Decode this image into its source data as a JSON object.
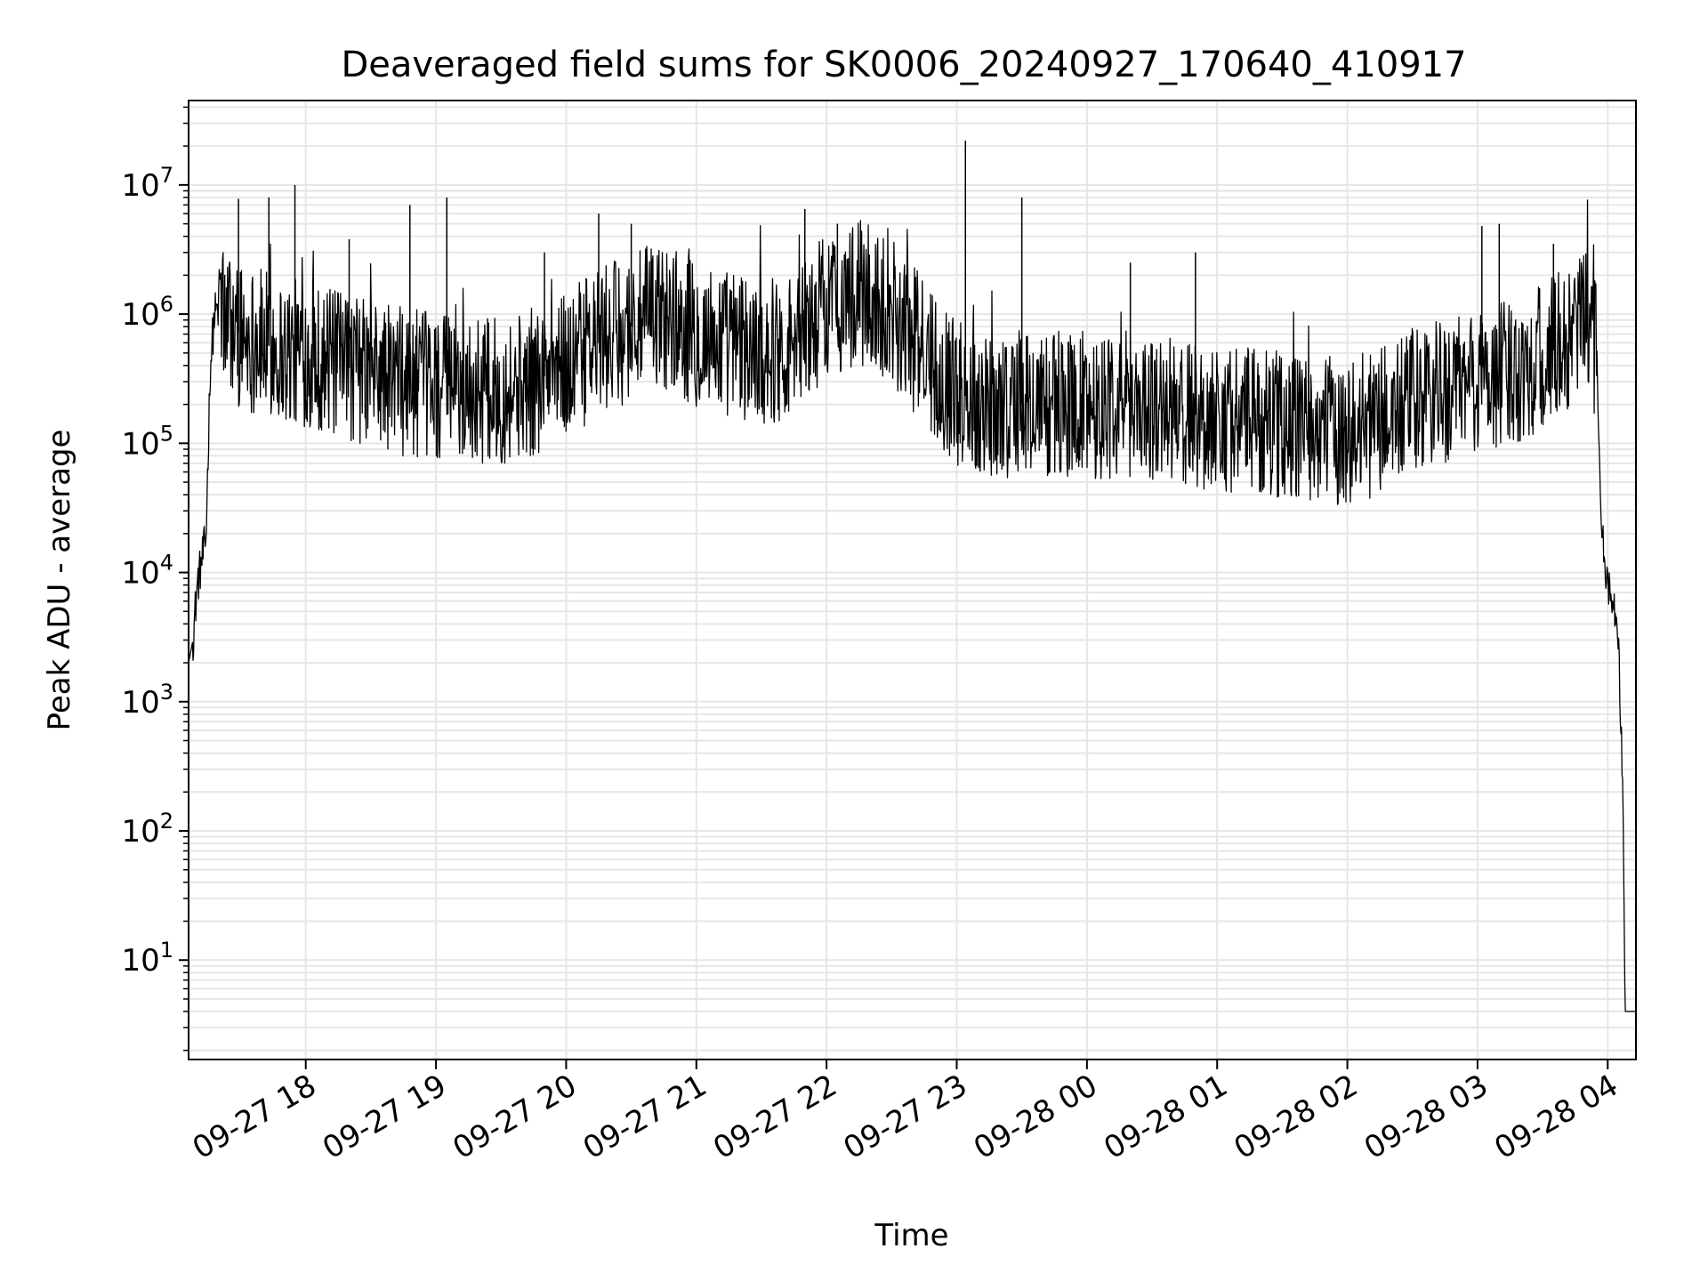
{
  "chart_data": {
    "type": "line",
    "title": "Deaveraged field sums for SK0006_20240927_170640_410917",
    "xlabel": "Time",
    "ylabel": "Peak ADU - average",
    "y_scale": "log",
    "ylim": [
      1.7,
      45000000
    ],
    "xlim": [
      "2024-09-27 17:06",
      "2024-09-28 04:13"
    ],
    "grid": true,
    "line_color": "#000000",
    "grid_color": "#e6e6e6",
    "x_ticks": [
      {
        "value": "2024-09-27 18:00",
        "label": "09-27 18"
      },
      {
        "value": "2024-09-27 19:00",
        "label": "09-27 19"
      },
      {
        "value": "2024-09-27 20:00",
        "label": "09-27 20"
      },
      {
        "value": "2024-09-27 21:00",
        "label": "09-27 21"
      },
      {
        "value": "2024-09-27 22:00",
        "label": "09-27 22"
      },
      {
        "value": "2024-09-27 23:00",
        "label": "09-27 23"
      },
      {
        "value": "2024-09-28 00:00",
        "label": "09-28 00"
      },
      {
        "value": "2024-09-28 01:00",
        "label": "09-28 01"
      },
      {
        "value": "2024-09-28 02:00",
        "label": "09-28 02"
      },
      {
        "value": "2024-09-28 03:00",
        "label": "09-28 03"
      },
      {
        "value": "2024-09-28 04:00",
        "label": "09-28 04"
      }
    ],
    "y_ticks": [
      {
        "value": 10,
        "base": "10",
        "exp": "1"
      },
      {
        "value": 100,
        "base": "10",
        "exp": "2"
      },
      {
        "value": 1000,
        "base": "10",
        "exp": "3"
      },
      {
        "value": 10000,
        "base": "10",
        "exp": "4"
      },
      {
        "value": 100000,
        "base": "10",
        "exp": "5"
      },
      {
        "value": 1000000,
        "base": "10",
        "exp": "6"
      },
      {
        "value": 10000000,
        "base": "10",
        "exp": "7"
      }
    ],
    "series": [
      {
        "noisy_band": true,
        "x": [
          "2024-09-27 17:06",
          "2024-09-27 17:08",
          "2024-09-27 17:10",
          "2024-09-27 17:12",
          "2024-09-27 17:14",
          "2024-09-27 17:16",
          "2024-09-27 17:18",
          "2024-09-27 17:20",
          "2024-09-27 17:23",
          "2024-09-27 17:26",
          "2024-09-27 17:30",
          "2024-09-27 17:40",
          "2024-09-27 17:50",
          "2024-09-27 18:00",
          "2024-09-27 18:15",
          "2024-09-27 18:30",
          "2024-09-27 18:45",
          "2024-09-27 19:00",
          "2024-09-27 19:15",
          "2024-09-27 19:30",
          "2024-09-27 19:45",
          "2024-09-27 20:00",
          "2024-09-27 20:15",
          "2024-09-27 20:30",
          "2024-09-27 20:45",
          "2024-09-27 21:00",
          "2024-09-27 21:15",
          "2024-09-27 21:30",
          "2024-09-27 21:45",
          "2024-09-27 22:00",
          "2024-09-27 22:15",
          "2024-09-27 22:30",
          "2024-09-27 22:45",
          "2024-09-27 23:00",
          "2024-09-27 23:15",
          "2024-09-27 23:30",
          "2024-09-27 23:45",
          "2024-09-28 00:00",
          "2024-09-28 00:15",
          "2024-09-28 00:30",
          "2024-09-28 00:45",
          "2024-09-28 01:00",
          "2024-09-28 01:15",
          "2024-09-28 01:30",
          "2024-09-28 01:45",
          "2024-09-28 02:00",
          "2024-09-28 02:15",
          "2024-09-28 02:30",
          "2024-09-28 02:45",
          "2024-09-28 03:00",
          "2024-09-28 03:15",
          "2024-09-28 03:30",
          "2024-09-28 03:45",
          "2024-09-28 03:50",
          "2024-09-28 03:55",
          "2024-09-28 03:57",
          "2024-09-28 03:59",
          "2024-09-28 04:01",
          "2024-09-28 04:03",
          "2024-09-28 04:05",
          "2024-09-28 04:07",
          "2024-09-28 04:08",
          "2024-09-28 04:09",
          "2024-09-28 04:10",
          "2024-09-28 04:13"
        ],
        "y": [
          2000,
          3000,
          8000,
          12000,
          18000,
          400000,
          1000000,
          1100000,
          900000,
          800000,
          700000,
          600000,
          500000,
          500000,
          400000,
          350000,
          300000,
          280000,
          260000,
          250000,
          300000,
          400000,
          600000,
          800000,
          1000000,
          700000,
          600000,
          500000,
          600000,
          1200000,
          1400000,
          1100000,
          500000,
          250000,
          200000,
          200000,
          200000,
          200000,
          200000,
          190000,
          170000,
          160000,
          150000,
          140000,
          130000,
          120000,
          150000,
          200000,
          250000,
          300000,
          350000,
          450000,
          700000,
          900000,
          500000,
          30000,
          10000,
          7000,
          5000,
          2500,
          200,
          4,
          4,
          4,
          4
        ]
      }
    ],
    "spikes": [
      {
        "x": "2024-09-27 17:29",
        "y": 7800000
      },
      {
        "x": "2024-09-27 17:43",
        "y": 8000000
      },
      {
        "x": "2024-09-27 17:55",
        "y": 10000000
      },
      {
        "x": "2024-09-27 18:20",
        "y": 3800000
      },
      {
        "x": "2024-09-27 18:48",
        "y": 7000000
      },
      {
        "x": "2024-09-27 19:05",
        "y": 8000000
      },
      {
        "x": "2024-09-27 19:50",
        "y": 3000000
      },
      {
        "x": "2024-09-27 20:15",
        "y": 6000000
      },
      {
        "x": "2024-09-27 20:30",
        "y": 5000000
      },
      {
        "x": "2024-09-27 21:50",
        "y": 6500000
      },
      {
        "x": "2024-09-27 22:05",
        "y": 5000000
      },
      {
        "x": "2024-09-27 23:04",
        "y": 22000000
      },
      {
        "x": "2024-09-27 23:30",
        "y": 8000000
      },
      {
        "x": "2024-09-28 00:20",
        "y": 2500000
      },
      {
        "x": "2024-09-28 00:50",
        "y": 3000000
      },
      {
        "x": "2024-09-28 03:02",
        "y": 4800000
      },
      {
        "x": "2024-09-28 03:10",
        "y": 5000000
      },
      {
        "x": "2024-09-28 03:35",
        "y": 3500000
      }
    ]
  }
}
